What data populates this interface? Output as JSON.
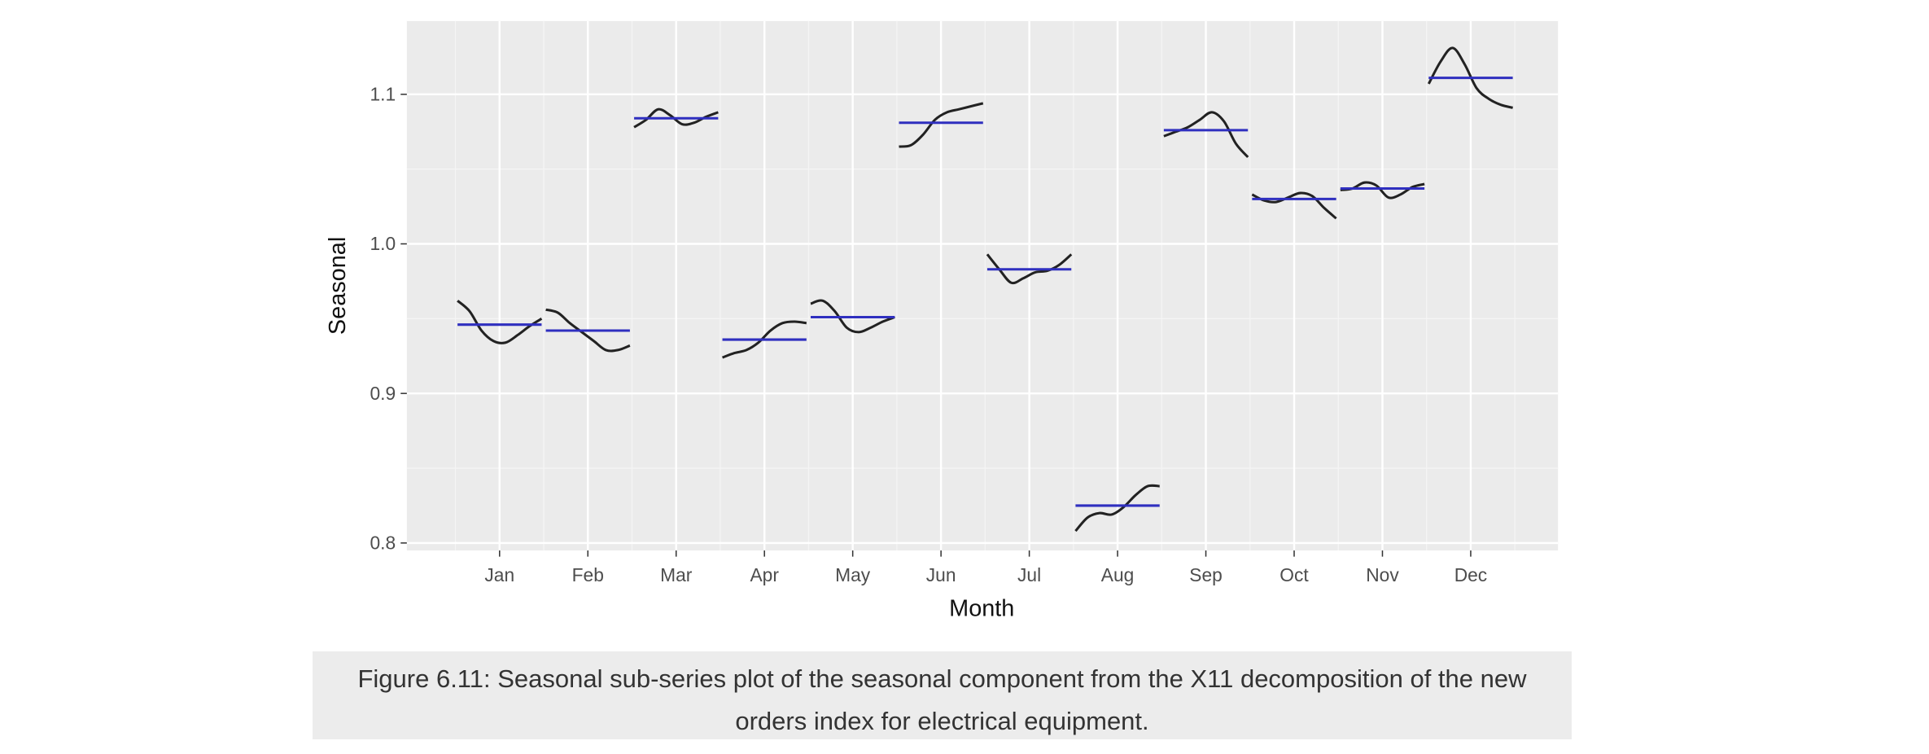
{
  "chart_data": {
    "type": "subseries",
    "x_label": "Month",
    "y_label": "Seasonal",
    "categories": [
      "Jan",
      "Feb",
      "Mar",
      "Apr",
      "May",
      "Jun",
      "Jul",
      "Aug",
      "Sep",
      "Oct",
      "Nov",
      "Dec"
    ],
    "values": [
      [
        0.962,
        0.955,
        0.942,
        0.935,
        0.934,
        0.939,
        0.945,
        0.95
      ],
      [
        0.956,
        0.954,
        0.947,
        0.941,
        0.935,
        0.929,
        0.929,
        0.932
      ],
      [
        1.078,
        1.083,
        1.09,
        1.086,
        1.08,
        1.081,
        1.085,
        1.088
      ],
      [
        0.924,
        0.927,
        0.929,
        0.934,
        0.942,
        0.947,
        0.948,
        0.947
      ],
      [
        0.96,
        0.962,
        0.955,
        0.944,
        0.941,
        0.944,
        0.948,
        0.951
      ],
      [
        1.065,
        1.066,
        1.073,
        1.083,
        1.088,
        1.09,
        1.092,
        1.094
      ],
      [
        0.993,
        0.983,
        0.974,
        0.977,
        0.981,
        0.982,
        0.986,
        0.993
      ],
      [
        0.808,
        0.817,
        0.82,
        0.819,
        0.824,
        0.832,
        0.838,
        0.838
      ],
      [
        1.072,
        1.075,
        1.078,
        1.083,
        1.088,
        1.082,
        1.067,
        1.058
      ],
      [
        1.033,
        1.029,
        1.028,
        1.031,
        1.034,
        1.032,
        1.024,
        1.017
      ],
      [
        1.036,
        1.037,
        1.041,
        1.039,
        1.031,
        1.033,
        1.038,
        1.04
      ],
      [
        1.107,
        1.122,
        1.131,
        1.12,
        1.104,
        1.097,
        1.093,
        1.091
      ]
    ],
    "means": [
      0.946,
      0.942,
      1.084,
      0.936,
      0.951,
      1.081,
      0.983,
      0.825,
      1.076,
      1.03,
      1.037,
      1.111
    ],
    "color": "#222222",
    "mean_color": "#2f2fbf",
    "ylim": [
      0.795,
      1.149
    ],
    "yticks": [
      0.8,
      0.9,
      {
        "value": 1,
        "label": "1.0"
      },
      1.1
    ],
    "y_minor_ticks": [
      0.85,
      0.95,
      1.05
    ],
    "grid": true
  },
  "caption": "Figure 6.11: Seasonal sub-series plot of the seasonal component from the X11 decomposition of the new orders index for electrical equipment."
}
